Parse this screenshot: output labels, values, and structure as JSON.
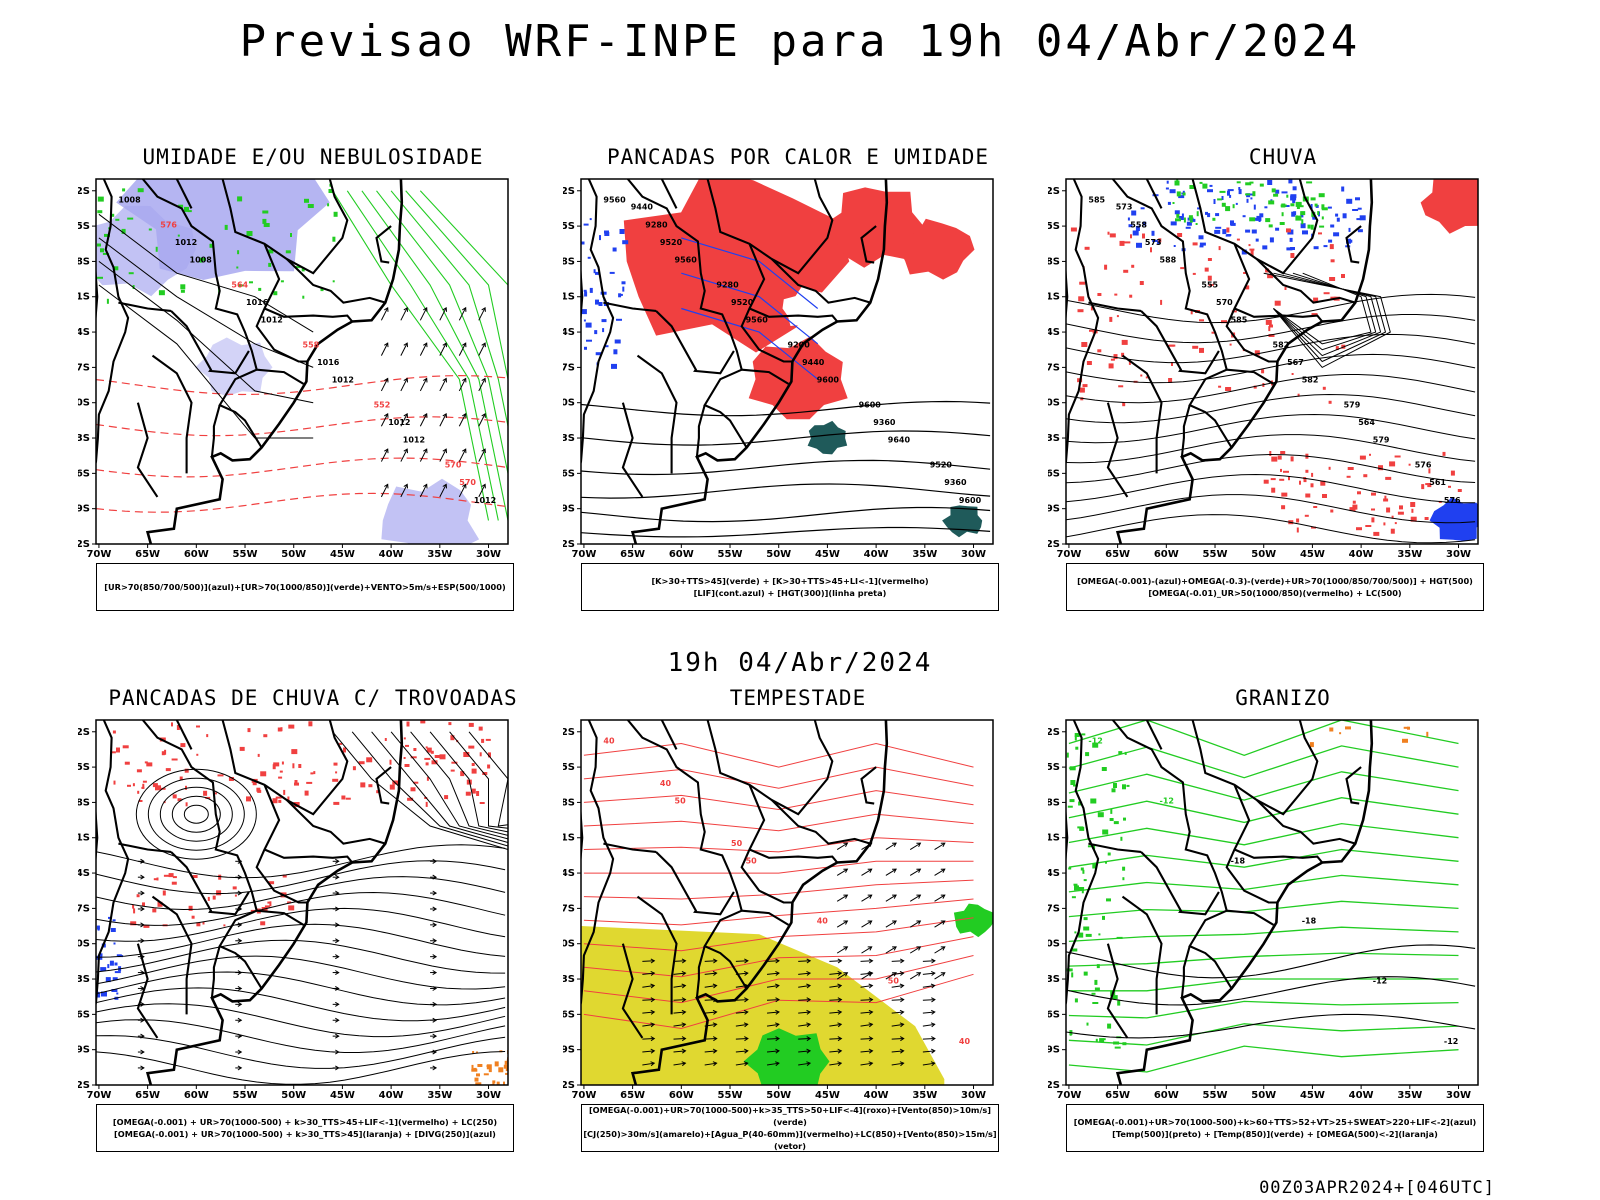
{
  "title": "Previsao WRF-INPE  para 19h 04/Abr/2024",
  "middle_date": "19h 04/Abr/2024",
  "footer_code": "00Z03APR2024+[046UTC]",
  "axes": {
    "lat_labels": [
      "12S",
      "15S",
      "18S",
      "21S",
      "24S",
      "27S",
      "30S",
      "33S",
      "36S",
      "39S",
      "42S"
    ],
    "lon_labels": [
      "70W",
      "65W",
      "60W",
      "55W",
      "50W",
      "45W",
      "40W",
      "35W",
      "30W"
    ]
  },
  "colors": {
    "humidity_blue": "#a8a8f0",
    "humidity_green": "#22cc22",
    "rain_red": "#f04040",
    "storm_yellow": "#e0d830",
    "dark_teal": "#1f5a5a",
    "hail_orange": "#f08020",
    "blue": "#2040f0"
  },
  "panels": [
    {
      "title": "UMIDADE E/OU NEBULOSIDADE",
      "legend": [
        "[UR>70(850/700/500)](azul)+[UR>70(1000/850)](verde)+VENTO>5m/s+ESP(500/1000)"
      ],
      "contour_labels": [
        "1008",
        "1008",
        "1012",
        "1012",
        "1012",
        "1012",
        "1012",
        "1016",
        "1016",
        "1012",
        "570",
        "576",
        "564",
        "558",
        "552",
        "570"
      ]
    },
    {
      "title": "PANCADAS POR CALOR E UMIDADE",
      "legend": [
        "[K>30+TTS>45](verde)  +  [K>30+TTS>45+LI<-1](vermelho)",
        "[LIF](cont.azul)  +  [HGT(300)](linha preta)"
      ],
      "contour_labels": [
        "9560",
        "9560",
        "9560",
        "9600",
        "9640",
        "9600",
        "9520",
        "9520",
        "9440",
        "9360",
        "9360",
        "9280",
        "9280",
        "9200",
        "9600",
        "9520",
        "9440"
      ]
    },
    {
      "title": "CHUVA",
      "legend": [
        "[OMEGA(-0.001)-(azul)+OMEGA(-0.3)-(verde)+UR>70(1000/850/700/500)]  +  HGT(500)",
        "[OMEGA(-0.01)_UR>50(1000/850)(vermelho)  +  LC(500)"
      ],
      "contour_labels": [
        "585",
        "588",
        "585",
        "582",
        "579",
        "576",
        "573",
        "570",
        "567",
        "564",
        "561",
        "558",
        "555",
        "582",
        "579",
        "576",
        "573"
      ]
    },
    {
      "title": "PANCADAS DE CHUVA C/ TROVOADAS",
      "legend": [
        "[OMEGA(-0.001)  +  UR>70(1000-500)  +  k>30_TTS>45+LIF<-1](vermelho)  +  LC(250)",
        "[OMEGA(-0.001)  +  UR>70(1000-500)  +  k>30_TTS>45](laranja)  +  [DIVG(250)](azul)"
      ],
      "contour_labels": []
    },
    {
      "title": "TEMPESTADE",
      "legend": [
        "[OMEGA(-0.001)+UR>70(1000-500)+k>35_TTS>50+LIF<-4](roxo)+[Vento(850)>10m/s](verde)",
        "[CJ(250)>30m/s](amarelo)+[Agua_P(40-60mm)](vermelho)+LC(850)+[Vento(850)>15m/s](vetor)"
      ],
      "contour_labels": [
        "40",
        "50",
        "50",
        "40",
        "50",
        "40",
        "40",
        "50"
      ]
    },
    {
      "title": "GRANIZO",
      "legend": [
        "[OMEGA(-0.001)+UR>70(1000-500)+k>60+TTS>52+VT>25+SWEAT>220+LIF<-2](azul)",
        "[Temp(500)](preto)  +  [Temp(850)](verde)  +  [OMEGA(500)<-2](laranja)"
      ],
      "contour_labels": [
        "-12",
        "-12",
        "-18",
        "-18",
        "-12",
        "-12"
      ]
    }
  ]
}
